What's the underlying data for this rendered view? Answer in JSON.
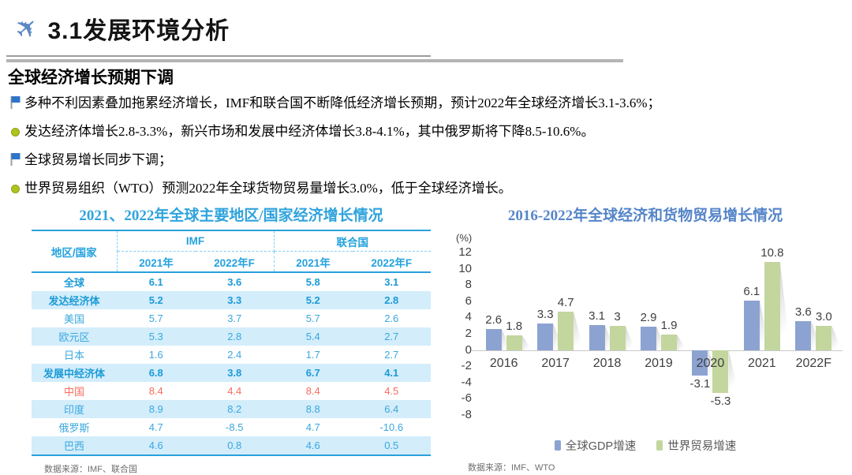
{
  "header": {
    "title": "3.1发展环境分析",
    "icon": "airplane-icon"
  },
  "section": {
    "subtitle": "全球经济增长预期下调"
  },
  "bullets": [
    {
      "icon": "flag",
      "text": "多种不利因素叠加拖累经济增长，IMF和联合国不断降低经济增长预期，预计2022年全球经济增长3.1-3.6%；"
    },
    {
      "icon": "dot",
      "text": "发达经济体增长2.8-3.3%，新兴市场和发展中经济体增长3.8-4.1%，其中俄罗斯将下降8.5-10.6%。"
    },
    {
      "icon": "flag",
      "text": "全球贸易增长同步下调；"
    },
    {
      "icon": "dot",
      "text": "世界贸易组织（WTO）预测2022年全球货物贸易量增长3.0%，低于全球经济增长。"
    }
  ],
  "table": {
    "title": "2021、2022年全球主要地区/国家经济增长情况",
    "region_header": "地区/国家",
    "org_headers": [
      "IMF",
      "联合国"
    ],
    "year_headers": [
      "2021年",
      "2022年F",
      "2021年",
      "2022年F"
    ],
    "rows": [
      {
        "region": "全球",
        "values": [
          "6.1",
          "3.6",
          "5.8",
          "3.1"
        ],
        "bold": true,
        "highlight": false,
        "red": false
      },
      {
        "region": "发达经济体",
        "values": [
          "5.2",
          "3.3",
          "5.2",
          "2.8"
        ],
        "bold": true,
        "highlight": true,
        "red": false
      },
      {
        "region": "美国",
        "values": [
          "5.7",
          "3.7",
          "5.7",
          "2.6"
        ],
        "bold": false,
        "highlight": false,
        "red": false
      },
      {
        "region": "欧元区",
        "values": [
          "5.3",
          "2.8",
          "5.4",
          "2.7"
        ],
        "bold": false,
        "highlight": true,
        "red": false
      },
      {
        "region": "日本",
        "values": [
          "1.6",
          "2.4",
          "1.7",
          "2.7"
        ],
        "bold": false,
        "highlight": false,
        "red": false
      },
      {
        "region": "发展中经济体",
        "values": [
          "6.8",
          "3.8",
          "6.7",
          "4.1"
        ],
        "bold": true,
        "highlight": true,
        "red": false
      },
      {
        "region": "中国",
        "values": [
          "8.4",
          "4.4",
          "8.4",
          "4.5"
        ],
        "bold": false,
        "highlight": false,
        "red": true
      },
      {
        "region": "印度",
        "values": [
          "8.9",
          "8.2",
          "8.8",
          "6.4"
        ],
        "bold": false,
        "highlight": true,
        "red": false
      },
      {
        "region": "俄罗斯",
        "values": [
          "4.7",
          "-8.5",
          "4.7",
          "-10.6"
        ],
        "bold": false,
        "highlight": false,
        "red": false
      },
      {
        "region": "巴西",
        "values": [
          "4.6",
          "0.8",
          "4.6",
          "0.5"
        ],
        "bold": false,
        "highlight": true,
        "red": false
      }
    ],
    "source": "数据来源：IMF、联合国"
  },
  "chart": {
    "source": "数据来源：IMF、WTO"
  },
  "chart_data": {
    "type": "bar",
    "title": "2016-2022年全球经济和货物贸易增长情况",
    "unit_label": "(%)",
    "categories": [
      "2016",
      "2017",
      "2018",
      "2019",
      "2020",
      "2021",
      "2022F"
    ],
    "series": [
      {
        "name": "全球GDP增速",
        "color": "#8ca3d2",
        "values": [
          2.6,
          3.3,
          3.1,
          2.9,
          -3.1,
          6.1,
          3.6
        ],
        "labels": [
          "2.6",
          "3.3",
          "3.1",
          "2.9",
          "-3.1",
          "6.1",
          "3.6"
        ]
      },
      {
        "name": "世界贸易增速",
        "color": "#c3d69e",
        "values": [
          1.8,
          4.7,
          3,
          1.9,
          -5.3,
          10.8,
          3.0
        ],
        "labels": [
          "1.8",
          "4.7",
          "3",
          "1.9",
          "-5.3",
          "10.8",
          "3.0"
        ]
      }
    ],
    "y_ticks": [
      12,
      10,
      8,
      6,
      4,
      2,
      0,
      -2,
      -4,
      -6,
      -8
    ],
    "ylim": [
      -8,
      12
    ],
    "xlabel": "",
    "ylabel": "(%)",
    "grid": false,
    "legend_position": "bottom"
  },
  "colors": {
    "accent_blue": "#29a0dc",
    "table_highlight": "#d3edfb",
    "table_red": "#f96c5e",
    "title_blue": "#2fa3dc",
    "chart_title_blue": "#5585c8",
    "plane_blue": "#5b87c5",
    "gdp_bar": "#8ca3d2",
    "trade_bar": "#c3d69e"
  }
}
